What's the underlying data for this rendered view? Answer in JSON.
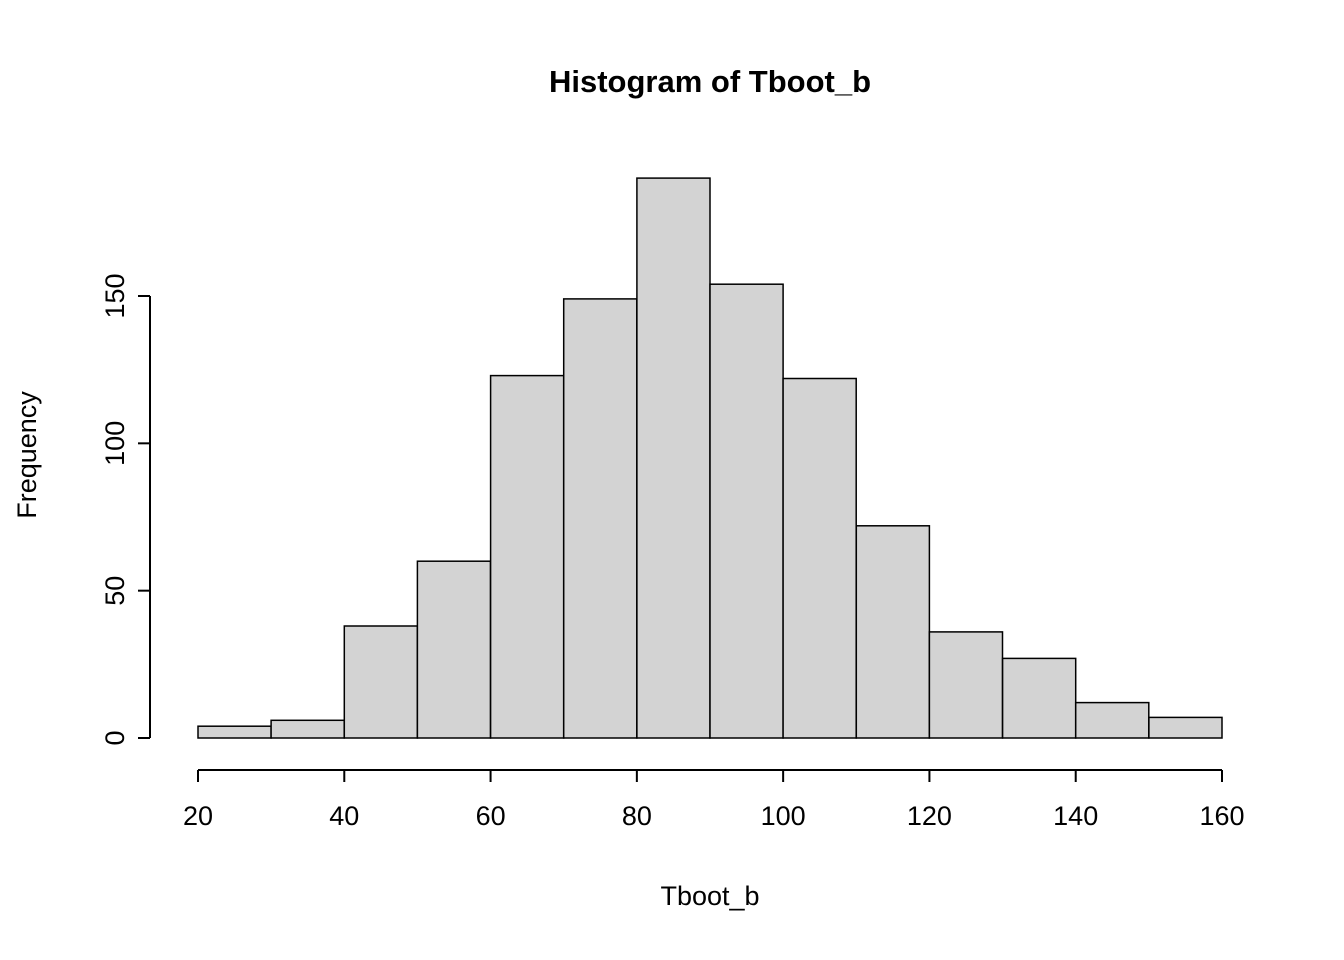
{
  "chart_data": {
    "type": "bar",
    "subtype": "histogram",
    "title": "Histogram of Tboot_b",
    "xlabel": "Tboot_b",
    "ylabel": "Frequency",
    "bin_edges": [
      20,
      30,
      40,
      50,
      60,
      70,
      80,
      90,
      100,
      110,
      120,
      130,
      140,
      150,
      160
    ],
    "counts": [
      4,
      6,
      38,
      60,
      123,
      149,
      190,
      154,
      122,
      72,
      36,
      27,
      12,
      7
    ],
    "xlim": [
      20,
      160
    ],
    "ylim": [
      0,
      150
    ],
    "x_ticks": [
      20,
      40,
      60,
      80,
      100,
      120,
      140,
      160
    ],
    "y_ticks": [
      0,
      50,
      100,
      150
    ],
    "grid": "off",
    "legend": "none",
    "bar_fill": "#d3d3d3",
    "bar_stroke": "#000000",
    "background": "#ffffff"
  }
}
